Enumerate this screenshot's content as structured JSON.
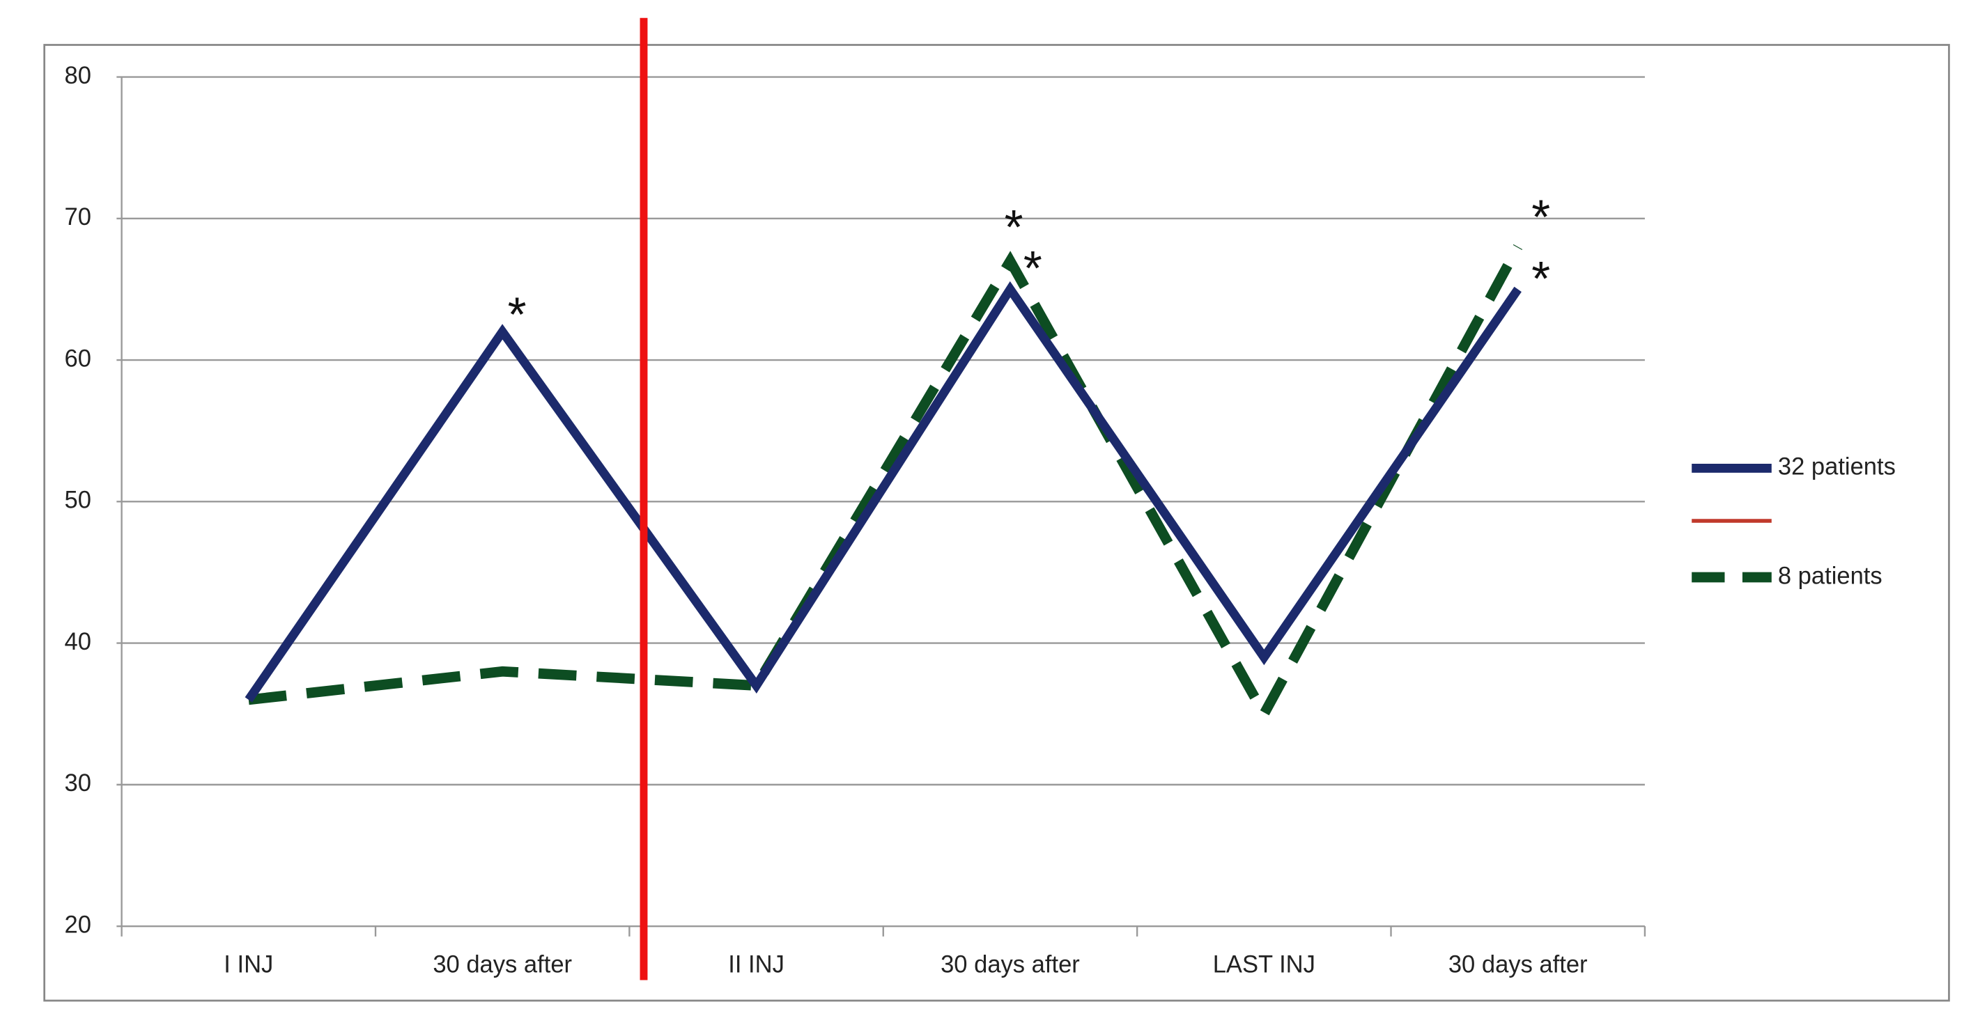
{
  "chart_data": {
    "type": "line",
    "categories": [
      "I INJ",
      "30 days after",
      "II INJ",
      "30 days after",
      "LAST INJ",
      "30 days after"
    ],
    "series": [
      {
        "name": "32 patients",
        "color": "#1c2a6c",
        "style": "solid",
        "values": [
          36,
          62,
          37,
          65,
          39,
          65
        ]
      },
      {
        "name": "8 patients",
        "color": "#0d4d22",
        "style": "dashed",
        "values": [
          36,
          38,
          37,
          67,
          35,
          68
        ]
      }
    ],
    "ylim": [
      20,
      80
    ],
    "yticks": [
      20,
      30,
      40,
      50,
      60,
      70,
      80
    ],
    "grid": true,
    "legend": "right",
    "annotations": [
      "*",
      "*",
      "*",
      "*",
      "*"
    ]
  }
}
